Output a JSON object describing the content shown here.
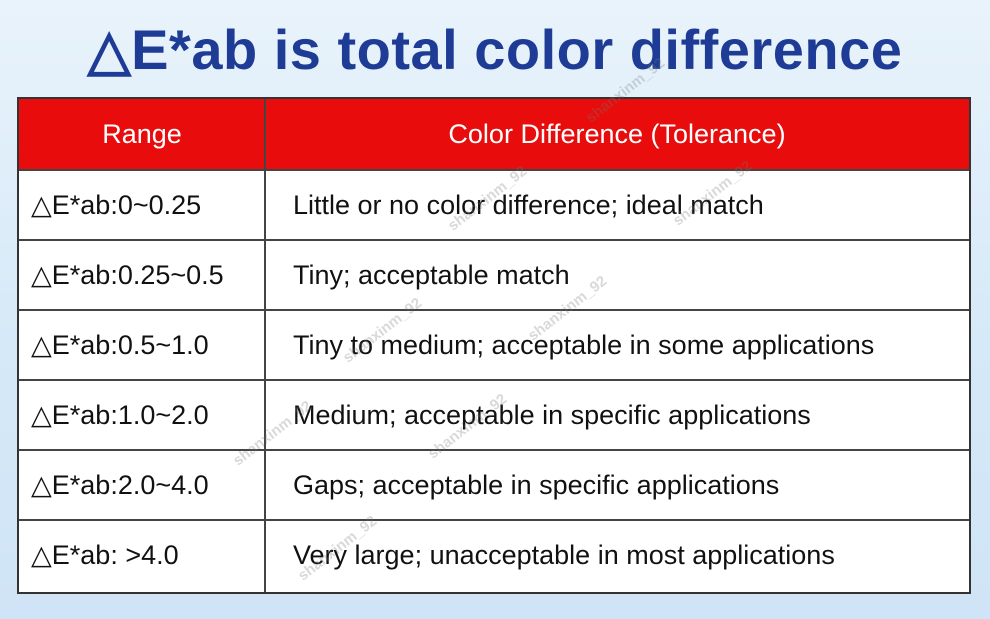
{
  "title": "△E*ab is total color difference",
  "table": {
    "headers": [
      "Range",
      "Color Difference (Tolerance)"
    ],
    "rows": [
      {
        "range": "△E*ab:0~0.25",
        "description": "Little or no color difference; ideal match"
      },
      {
        "range": "△E*ab:0.25~0.5",
        "description": "Tiny; acceptable match"
      },
      {
        "range": "△E*ab:0.5~1.0",
        "description": "Tiny to medium; acceptable in some applications"
      },
      {
        "range": "△E*ab:1.0~2.0",
        "description": "Medium; acceptable in specific applications"
      },
      {
        "range": "△E*ab:2.0~4.0",
        "description": "Gaps; acceptable in specific applications"
      },
      {
        "range": "△E*ab: >4.0",
        "description": "Very large; unacceptable in most applications"
      }
    ]
  },
  "watermark": "shanxinm_92",
  "colors": {
    "title": "#1e3c96",
    "header_bg": "#e80c0c",
    "header_text": "#ffffff"
  }
}
